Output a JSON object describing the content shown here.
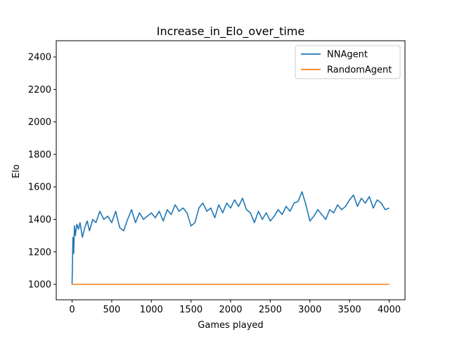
{
  "chart_data": {
    "type": "line",
    "title": "Increase_in_Elo_over_time",
    "xlabel": "Games played",
    "ylabel": "Elo",
    "xlim": [
      -200,
      4200
    ],
    "ylim": [
      905,
      2500
    ],
    "xticks": [
      0,
      500,
      1000,
      1500,
      2000,
      2500,
      3000,
      3500,
      4000
    ],
    "yticks": [
      1000,
      1200,
      1400,
      1600,
      1800,
      2000,
      2200,
      2400
    ],
    "legend_position": "top-right",
    "grid": false,
    "series": [
      {
        "name": "NNAgent",
        "color": "#1f77b4",
        "x": [
          0,
          10,
          20,
          30,
          40,
          60,
          80,
          100,
          130,
          160,
          190,
          220,
          260,
          300,
          350,
          400,
          450,
          500,
          550,
          600,
          650,
          700,
          750,
          800,
          850,
          900,
          950,
          1000,
          1050,
          1100,
          1150,
          1200,
          1250,
          1300,
          1350,
          1400,
          1450,
          1500,
          1550,
          1600,
          1650,
          1700,
          1750,
          1800,
          1850,
          1900,
          1950,
          2000,
          2050,
          2100,
          2150,
          2200,
          2250,
          2300,
          2350,
          2400,
          2450,
          2500,
          2550,
          2600,
          2650,
          2700,
          2750,
          2800,
          2850,
          2900,
          2950,
          3000,
          3050,
          3100,
          3150,
          3200,
          3250,
          3300,
          3350,
          3400,
          3450,
          3500,
          3550,
          3600,
          3650,
          3700,
          3750,
          3800,
          3850,
          3900,
          3950,
          4000
        ],
        "values": [
          1000,
          1290,
          1190,
          1360,
          1300,
          1370,
          1340,
          1380,
          1290,
          1350,
          1390,
          1330,
          1400,
          1380,
          1450,
          1400,
          1420,
          1380,
          1450,
          1350,
          1330,
          1400,
          1460,
          1380,
          1440,
          1400,
          1420,
          1440,
          1410,
          1450,
          1390,
          1460,
          1430,
          1490,
          1450,
          1470,
          1440,
          1360,
          1380,
          1470,
          1500,
          1450,
          1470,
          1410,
          1490,
          1440,
          1500,
          1470,
          1520,
          1480,
          1530,
          1460,
          1440,
          1380,
          1450,
          1400,
          1440,
          1390,
          1420,
          1460,
          1430,
          1480,
          1450,
          1500,
          1510,
          1570,
          1490,
          1390,
          1420,
          1460,
          1430,
          1400,
          1460,
          1440,
          1490,
          1460,
          1480,
          1520,
          1550,
          1480,
          1530,
          1500,
          1540,
          1470,
          1520,
          1500,
          1460,
          1470
        ]
      },
      {
        "name": "RandomAgent",
        "color": "#ff7f0e",
        "x": [
          0,
          4000
        ],
        "values": [
          1000,
          1000
        ]
      }
    ]
  }
}
